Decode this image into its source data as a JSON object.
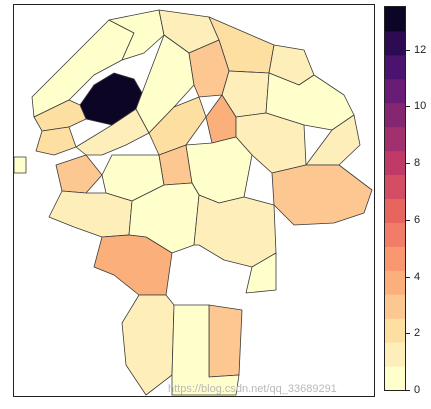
{
  "legend": {
    "ticks": [
      "0",
      "2",
      "4",
      "6",
      "8",
      "10",
      "12"
    ],
    "tick_values": [
      0,
      2,
      4,
      6,
      8,
      10,
      12
    ],
    "range": [
      0,
      13.5
    ],
    "palette": [
      "#FFFFCC",
      "#FEEFBA",
      "#FDDFA2",
      "#FCC791",
      "#FBB07C",
      "#F99870",
      "#F17C67",
      "#E6655E",
      "#D34E63",
      "#BF3A67",
      "#A2306F",
      "#852673",
      "#681C76",
      "#4B1270",
      "#2D0B52",
      "#0C0526"
    ]
  },
  "watermark": {
    "text": "https://blog.csdn.net/qq_33689291"
  },
  "chart_data": {
    "type": "heatmap",
    "title": "",
    "value_scale": [
      0,
      13.5
    ],
    "note": "choropleth map of city districts; legend ticks 0-12",
    "regions": [
      {
        "id": "r1",
        "value": 0.3
      },
      {
        "id": "r2",
        "value": 13.5
      },
      {
        "id": "r3",
        "value": 1.8
      },
      {
        "id": "r4",
        "value": 0.5
      },
      {
        "id": "r5",
        "value": 1.2
      },
      {
        "id": "r6",
        "value": 2.0
      },
      {
        "id": "r7",
        "value": 1.0
      },
      {
        "id": "r8",
        "value": 2.5
      },
      {
        "id": "r9",
        "value": 3.0
      },
      {
        "id": "r10",
        "value": 1.5
      },
      {
        "id": "r11",
        "value": 0.8
      },
      {
        "id": "r12",
        "value": 2.8
      },
      {
        "id": "r13",
        "value": 1.1
      },
      {
        "id": "r14",
        "value": 0.4
      },
      {
        "id": "r15",
        "value": 4.0
      },
      {
        "id": "r16",
        "value": 2.2
      },
      {
        "id": "r17",
        "value": 0.9
      },
      {
        "id": "r18",
        "value": 1.6
      },
      {
        "id": "r19",
        "value": 0.3
      },
      {
        "id": "r20",
        "value": 3.2
      },
      {
        "id": "r21",
        "value": 0.6
      },
      {
        "id": "r22",
        "value": 2.6
      },
      {
        "id": "r23",
        "value": 1.3
      },
      {
        "id": "r24",
        "value": 0.7
      },
      {
        "id": "r25",
        "value": 3.4
      },
      {
        "id": "r26",
        "value": 1.4
      },
      {
        "id": "r27",
        "value": 0.2
      },
      {
        "id": "r28",
        "value": 3.0
      },
      {
        "id": "r29",
        "value": 1.0
      },
      {
        "id": "r30",
        "value": 0.5
      }
    ]
  }
}
